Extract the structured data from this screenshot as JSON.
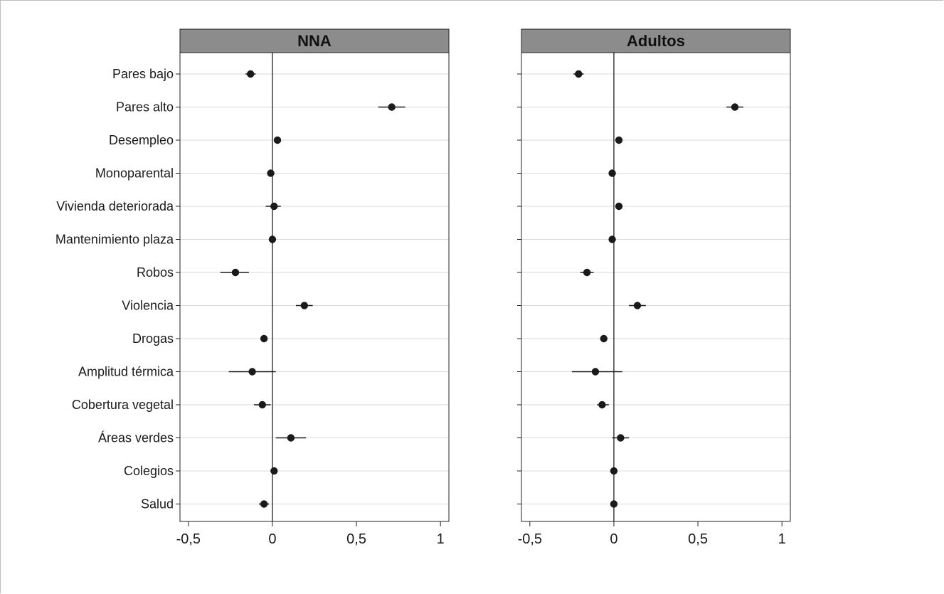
{
  "chart_data": [
    {
      "type": "scatter",
      "title": "NNA",
      "categories": [
        "Pares bajo",
        "Pares alto",
        "Desempleo",
        "Monoparental",
        "Vivienda deteriorada",
        "Mantenimiento plaza",
        "Robos",
        "Violencia",
        "Drogas",
        "Amplitud térmica",
        "Cobertura vegetal",
        "Áreas verdes",
        "Colegios",
        "Salud"
      ],
      "estimates": [
        -0.13,
        0.71,
        0.03,
        -0.01,
        0.01,
        0.0,
        -0.22,
        0.19,
        -0.05,
        -0.12,
        -0.06,
        0.11,
        0.01,
        -0.05
      ],
      "ci_low": [
        -0.16,
        0.63,
        0.02,
        -0.02,
        -0.04,
        -0.01,
        -0.31,
        0.14,
        -0.07,
        -0.26,
        -0.11,
        0.02,
        0.0,
        -0.08
      ],
      "ci_high": [
        -0.1,
        0.79,
        0.04,
        0.0,
        0.05,
        0.01,
        -0.14,
        0.24,
        -0.04,
        0.02,
        -0.01,
        0.2,
        0.02,
        -0.02
      ],
      "xlim": [
        -0.55,
        1.05
      ],
      "xticks": [
        -0.5,
        0,
        0.5,
        1
      ],
      "xtick_labels": [
        "-0,5",
        "0",
        "0,5",
        "1"
      ],
      "grid": true,
      "reference_line": 0
    },
    {
      "type": "scatter",
      "title": "Adultos",
      "categories": [
        "Pares bajo",
        "Pares alto",
        "Desempleo",
        "Monoparental",
        "Vivienda deteriorada",
        "Mantenimiento plaza",
        "Robos",
        "Violencia",
        "Drogas",
        "Amplitud térmica",
        "Cobertura vegetal",
        "Áreas verdes",
        "Colegios",
        "Salud"
      ],
      "estimates": [
        -0.21,
        0.72,
        0.03,
        -0.01,
        0.03,
        -0.01,
        -0.16,
        0.14,
        -0.06,
        -0.11,
        -0.07,
        0.04,
        0.0,
        0.0
      ],
      "ci_low": [
        -0.24,
        0.67,
        0.02,
        -0.02,
        0.02,
        -0.02,
        -0.2,
        0.09,
        -0.07,
        -0.25,
        -0.1,
        -0.01,
        -0.01,
        -0.01
      ],
      "ci_high": [
        -0.18,
        0.77,
        0.04,
        0.0,
        0.04,
        0.0,
        -0.12,
        0.19,
        -0.05,
        0.05,
        -0.03,
        0.09,
        0.01,
        0.01
      ],
      "xlim": [
        -0.55,
        1.05
      ],
      "xticks": [
        -0.5,
        0,
        0.5,
        1
      ],
      "xtick_labels": [
        "-0,5",
        "0",
        "0,5",
        "1"
      ],
      "grid": true,
      "reference_line": 0
    }
  ],
  "colors": {
    "title_bar": "#8c8c8c",
    "marker": "#1a1a1a",
    "grid": "#d9d9d9",
    "axis": "#222222"
  }
}
